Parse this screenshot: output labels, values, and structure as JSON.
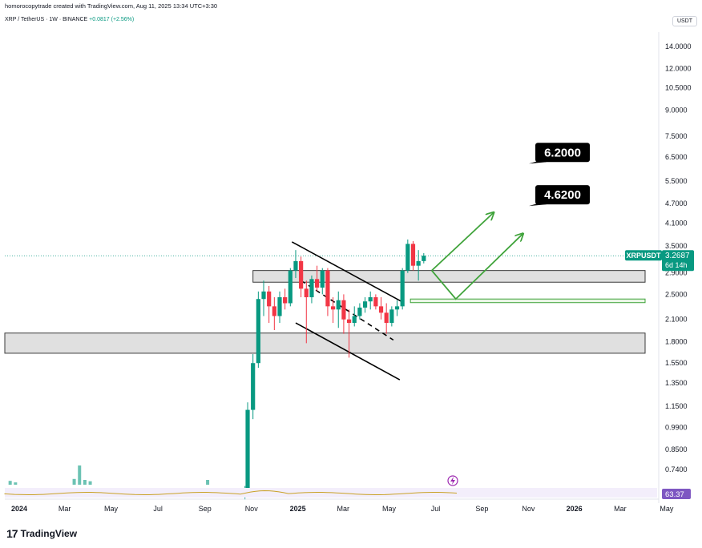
{
  "header": {
    "attribution": "homorocopytrade created with TradingView.com, Aug 11, 2025 13:34 UTC+3:30",
    "symbol": "XRP / TetherUS · 1W · BINANCE",
    "change": "+0.0817 (+2.56%)",
    "currency": "USDT"
  },
  "brand": {
    "mark": "17",
    "word": "TradingView"
  },
  "colors": {
    "up": "#089981",
    "down": "#f23645",
    "target_line": "#3fa33a",
    "label_bg": "#000000",
    "price_tag": "#089981",
    "zone_fill": "#e0e0e0"
  },
  "chart_data": {
    "type": "candlestick",
    "title": "XRP / TetherUS · 1W · BINANCE",
    "scale": "log",
    "ylim": [
      0.64,
      17.5
    ],
    "price_ticks": [
      "14.0000",
      "12.0000",
      "10.5000",
      "9.0000",
      "7.5000",
      "6.5000",
      "5.5000",
      "4.7000",
      "4.1000",
      "3.5000",
      "2.9000",
      "2.5000",
      "2.1000",
      "1.8000",
      "1.5500",
      "1.3500",
      "1.1500",
      "0.9900",
      "0.8500",
      "0.7400"
    ],
    "x_ticks": [
      {
        "label": "2024",
        "bold": true,
        "idx": 0
      },
      {
        "label": "Mar",
        "bold": false,
        "idx": 8.5
      },
      {
        "label": "May",
        "bold": false,
        "idx": 17.2
      },
      {
        "label": "Jul",
        "bold": false,
        "idx": 26
      },
      {
        "label": "Sep",
        "bold": false,
        "idx": 34.8
      },
      {
        "label": "Nov",
        "bold": false,
        "idx": 43.5
      },
      {
        "label": "2025",
        "bold": true,
        "idx": 52.2
      },
      {
        "label": "Mar",
        "bold": false,
        "idx": 60.7
      },
      {
        "label": "May",
        "bold": false,
        "idx": 69.3
      },
      {
        "label": "Jul",
        "bold": false,
        "idx": 78
      },
      {
        "label": "Sep",
        "bold": false,
        "idx": 86.7
      },
      {
        "label": "Nov",
        "bold": false,
        "idx": 95.4
      },
      {
        "label": "2026",
        "bold": true,
        "idx": 104
      },
      {
        "label": "Mar",
        "bold": false,
        "idx": 112.6
      },
      {
        "label": "May",
        "bold": false,
        "idx": 121.3
      }
    ],
    "candles": [
      {
        "i": 45,
        "o": 0.64,
        "h": 0.66,
        "l": 0.6,
        "c": 0.64
      },
      {
        "i": 45.5,
        "o": 0.64,
        "h": 1.18,
        "l": 0.62,
        "c": 1.12
      },
      {
        "i": 46.5,
        "o": 1.12,
        "h": 1.65,
        "l": 1.05,
        "c": 1.55
      },
      {
        "i": 47.5,
        "o": 1.55,
        "h": 2.55,
        "l": 1.5,
        "c": 2.42
      },
      {
        "i": 48.5,
        "o": 2.42,
        "h": 2.75,
        "l": 2.15,
        "c": 2.55
      },
      {
        "i": 49.5,
        "o": 2.55,
        "h": 2.65,
        "l": 2.05,
        "c": 2.3
      },
      {
        "i": 50.5,
        "o": 2.3,
        "h": 2.45,
        "l": 1.95,
        "c": 2.15
      },
      {
        "i": 51.5,
        "o": 2.15,
        "h": 2.55,
        "l": 2.05,
        "c": 2.45
      },
      {
        "i": 52.5,
        "o": 2.45,
        "h": 2.6,
        "l": 2.25,
        "c": 2.35
      },
      {
        "i": 53.5,
        "o": 2.35,
        "h": 3.0,
        "l": 2.3,
        "c": 2.95
      },
      {
        "i": 54.5,
        "o": 2.95,
        "h": 3.4,
        "l": 2.8,
        "c": 3.15
      },
      {
        "i": 55.5,
        "o": 3.15,
        "h": 3.25,
        "l": 2.45,
        "c": 2.6
      },
      {
        "i": 56.5,
        "o": 2.6,
        "h": 2.75,
        "l": 1.78,
        "c": 2.45
      },
      {
        "i": 57.5,
        "o": 2.45,
        "h": 2.85,
        "l": 2.35,
        "c": 2.78
      },
      {
        "i": 58.5,
        "o": 2.78,
        "h": 3.05,
        "l": 2.55,
        "c": 2.62
      },
      {
        "i": 59.5,
        "o": 2.62,
        "h": 3.0,
        "l": 2.5,
        "c": 2.95
      },
      {
        "i": 60.5,
        "o": 2.95,
        "h": 3.0,
        "l": 2.15,
        "c": 2.3
      },
      {
        "i": 61.5,
        "o": 2.3,
        "h": 2.45,
        "l": 2.05,
        "c": 2.25
      },
      {
        "i": 62.5,
        "o": 2.25,
        "h": 2.55,
        "l": 1.98,
        "c": 2.4
      },
      {
        "i": 63.5,
        "o": 2.4,
        "h": 2.5,
        "l": 1.9,
        "c": 2.1
      },
      {
        "i": 64.5,
        "o": 2.1,
        "h": 2.25,
        "l": 1.61,
        "c": 2.05
      },
      {
        "i": 65.5,
        "o": 2.05,
        "h": 2.3,
        "l": 2.0,
        "c": 2.15
      },
      {
        "i": 66.5,
        "o": 2.15,
        "h": 2.35,
        "l": 2.1,
        "c": 2.28
      },
      {
        "i": 67.5,
        "o": 2.28,
        "h": 2.45,
        "l": 2.2,
        "c": 2.38
      },
      {
        "i": 68.5,
        "o": 2.38,
        "h": 2.55,
        "l": 2.25,
        "c": 2.45
      },
      {
        "i": 69.5,
        "o": 2.45,
        "h": 2.5,
        "l": 2.25,
        "c": 2.3
      },
      {
        "i": 70.5,
        "o": 2.3,
        "h": 2.45,
        "l": 2.1,
        "c": 2.2
      },
      {
        "i": 71.5,
        "o": 2.2,
        "h": 2.35,
        "l": 1.9,
        "c": 2.05
      },
      {
        "i": 72.5,
        "o": 2.05,
        "h": 2.3,
        "l": 2.0,
        "c": 2.25
      },
      {
        "i": 73.5,
        "o": 2.25,
        "h": 2.4,
        "l": 2.15,
        "c": 2.3
      },
      {
        "i": 74.5,
        "o": 2.3,
        "h": 3.0,
        "l": 2.25,
        "c": 2.95
      },
      {
        "i": 75.5,
        "o": 2.95,
        "h": 3.66,
        "l": 2.9,
        "c": 3.55
      },
      {
        "i": 76.5,
        "o": 3.55,
        "h": 3.62,
        "l": 2.95,
        "c": 3.05
      },
      {
        "i": 77.5,
        "o": 3.05,
        "h": 3.4,
        "l": 2.75,
        "c": 3.15
      },
      {
        "i": 78.5,
        "o": 3.15,
        "h": 3.33,
        "l": 3.1,
        "c": 3.27
      }
    ],
    "zones": [
      {
        "name": "upper-resistance-zone",
        "low": 2.72,
        "high": 2.95,
        "from": 46.5,
        "to": 116
      },
      {
        "name": "lower-support-zone",
        "low": 1.66,
        "high": 1.91,
        "from": 0,
        "to": 116
      },
      {
        "name": "retest-zone",
        "low": 2.36,
        "high": 2.42,
        "from": 76,
        "to": 116
      }
    ],
    "channel_lines": [
      {
        "name": "channel-upper-line",
        "dash": false,
        "x1": 53.8,
        "y1": 3.6,
        "x2": 74.3,
        "y2": 2.38
      },
      {
        "name": "channel-mid-line",
        "dash": true,
        "x1": 55.5,
        "y1": 2.75,
        "x2": 72.8,
        "y2": 1.82
      },
      {
        "name": "channel-lower-line",
        "dash": false,
        "x1": 54.5,
        "y1": 2.05,
        "x2": 74.0,
        "y2": 1.38
      }
    ],
    "projection_paths": [
      {
        "name": "bullish-path-direct",
        "points": [
          [
            80.0,
            2.95
          ],
          [
            91.5,
            4.4
          ]
        ]
      },
      {
        "name": "bullish-path-retest",
        "points": [
          [
            80.0,
            2.95
          ],
          [
            84.5,
            2.42
          ],
          [
            97.0,
            3.8
          ]
        ]
      }
    ],
    "targets": [
      {
        "label": "6.2000",
        "value": 6.2,
        "anchor_idx": 98.2
      },
      {
        "label": "4.6200",
        "value": 4.62,
        "anchor_idx": 98.2
      }
    ],
    "current_price": {
      "symbol": "XRPUSDT",
      "price": "3.2687",
      "countdown": "6d 14h",
      "value": 3.2687
    },
    "volume": [
      {
        "i": 1,
        "v": 0.2
      },
      {
        "i": 2,
        "v": 0.12
      },
      {
        "i": 13,
        "v": 0.3
      },
      {
        "i": 14,
        "v": 1.0
      },
      {
        "i": 15,
        "v": 0.25
      },
      {
        "i": 16,
        "v": 0.18
      },
      {
        "i": 38,
        "v": 0.25
      }
    ],
    "rsi": {
      "value": "63.37"
    },
    "annotations": [
      "6.2000",
      "4.6200"
    ]
  }
}
